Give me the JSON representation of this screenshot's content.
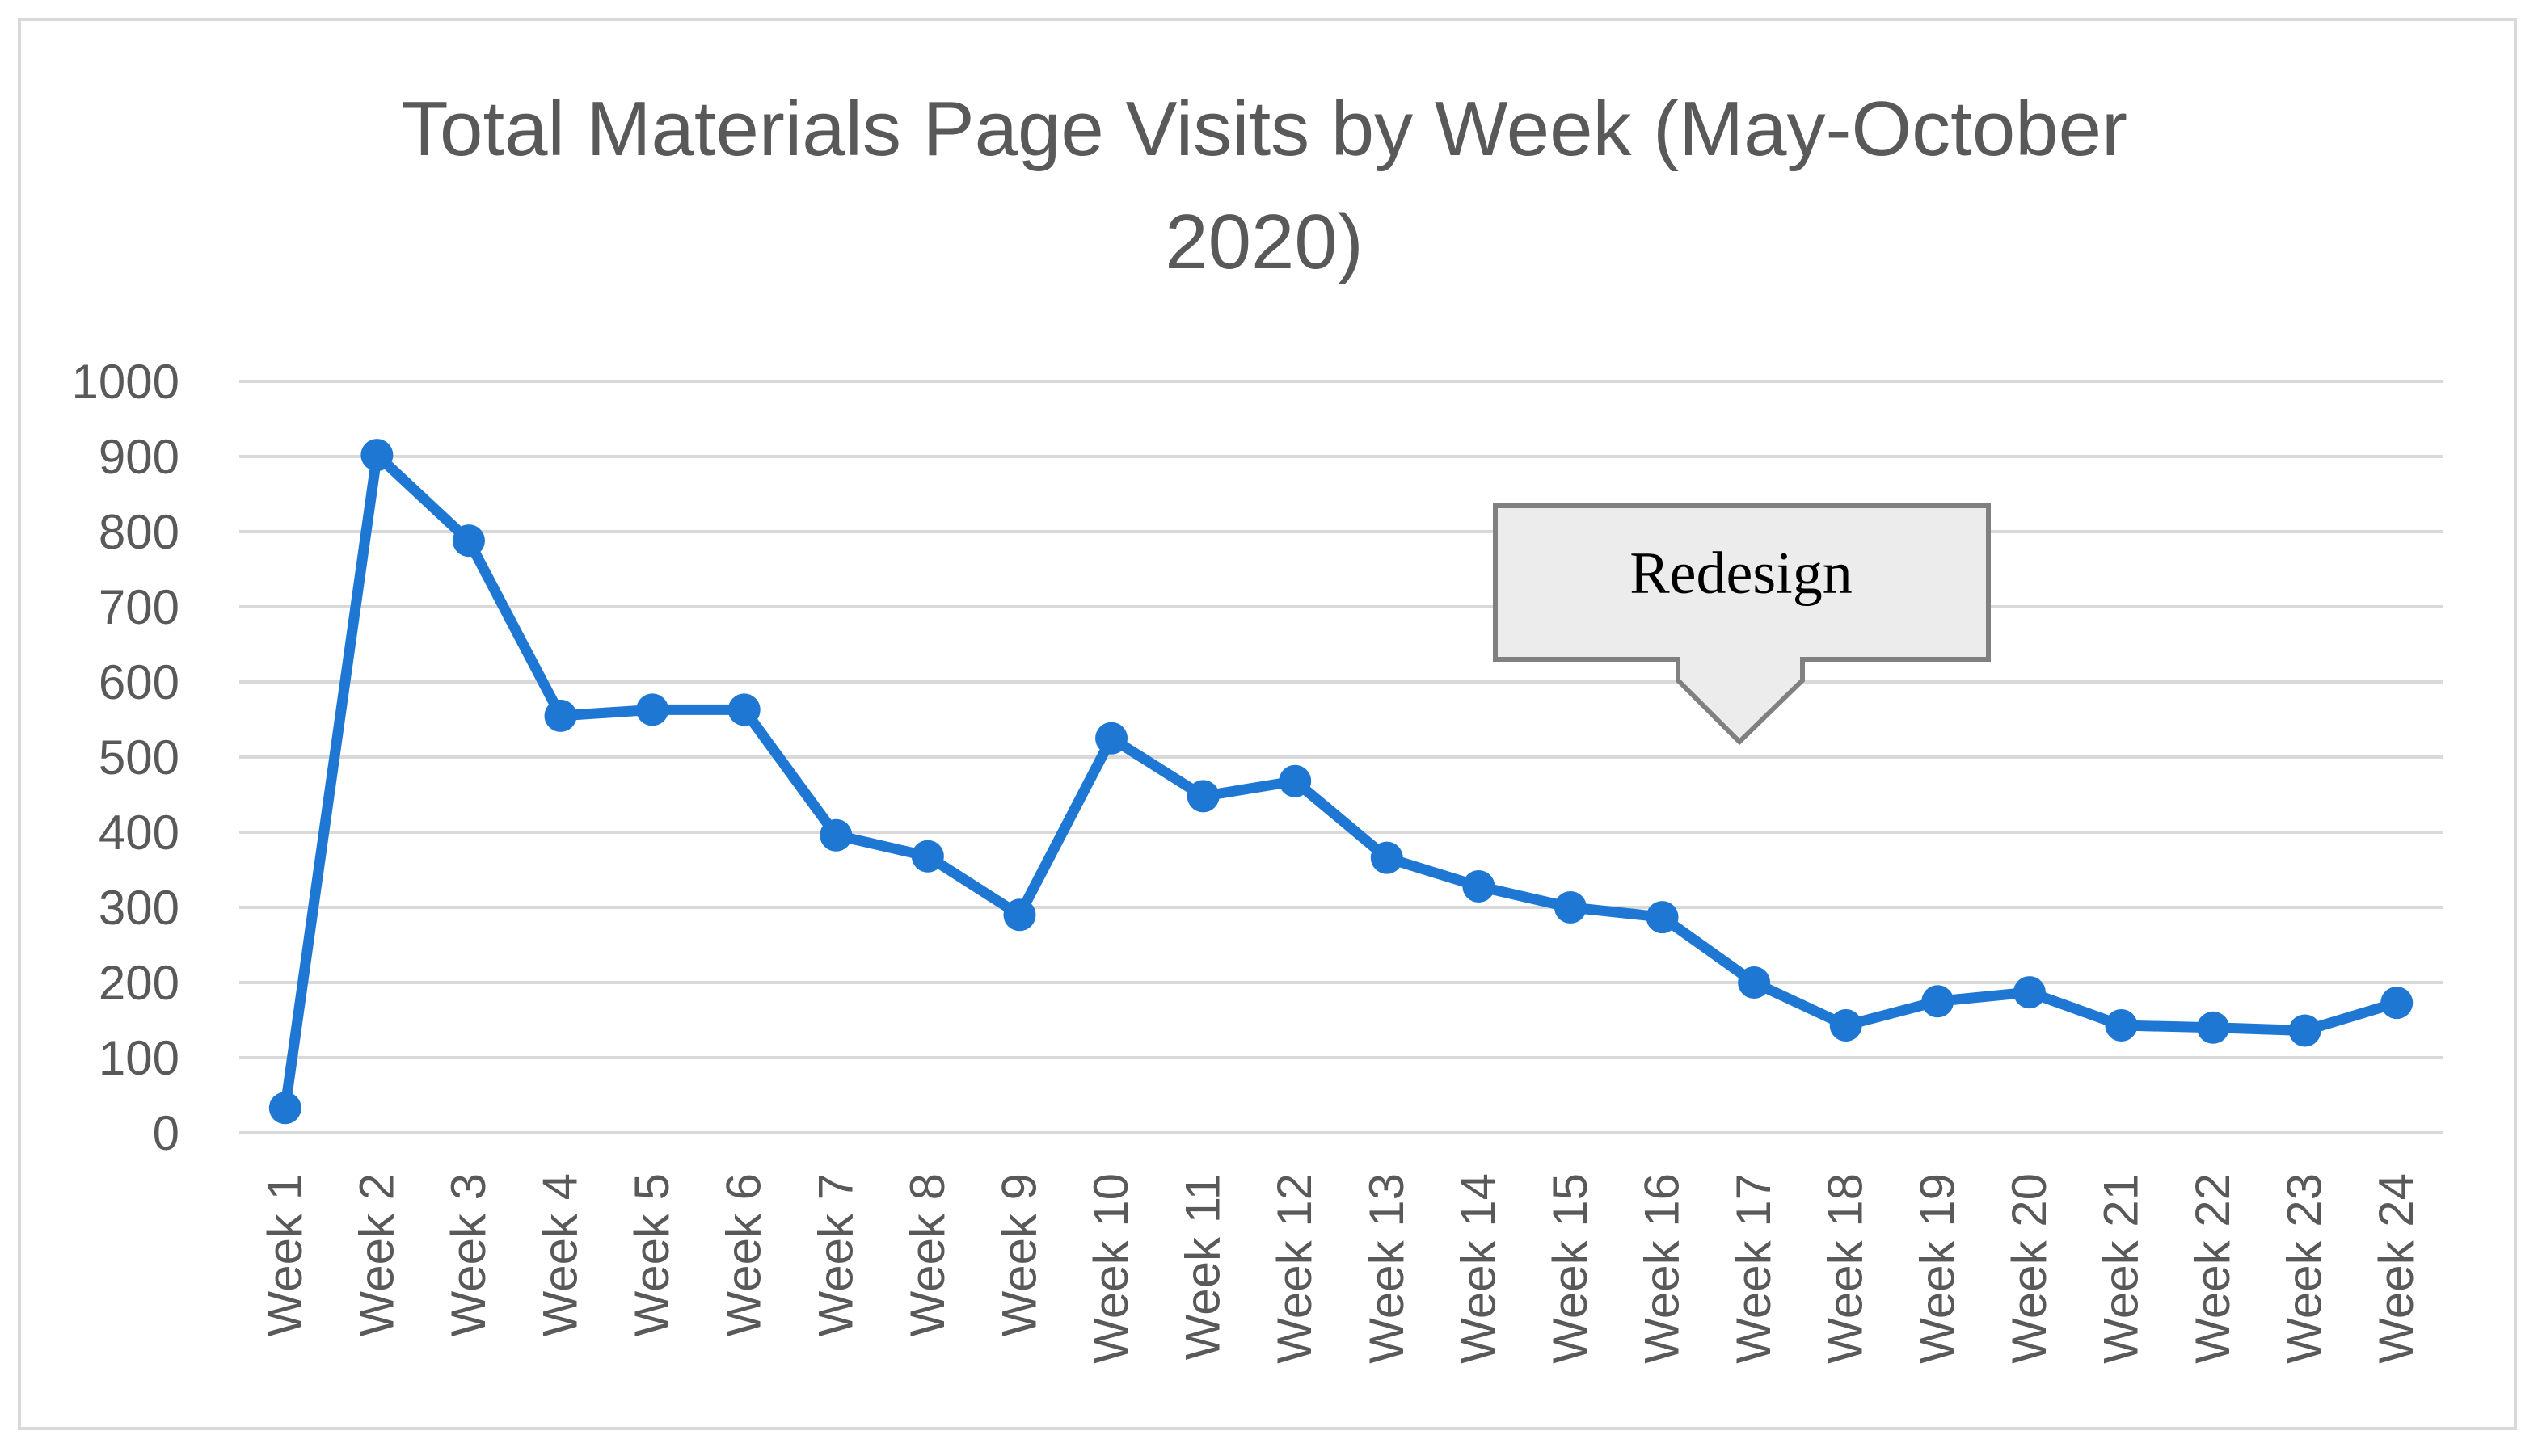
{
  "chart_data": {
    "type": "line",
    "title_line1": "Total Materials Page Visits by Week (May-October",
    "title_line2": "2020)",
    "xlabel": "",
    "ylabel": "",
    "ylim": [
      0,
      1000
    ],
    "yticks": [
      0,
      100,
      200,
      300,
      400,
      500,
      600,
      700,
      800,
      900,
      1000
    ],
    "grid": true,
    "legend": "none",
    "categories": [
      "Week 1",
      "Week 2",
      "Week 3",
      "Week 4",
      "Week 5",
      "Week 6",
      "Week 7",
      "Week 8",
      "Week 9",
      "Week 10",
      "Week 11",
      "Week 12",
      "Week 13",
      "Week 14",
      "Week 15",
      "Week 16",
      "Week 17",
      "Week 18",
      "Week 19",
      "Week 20",
      "Week 21",
      "Week 22",
      "Week 23",
      "Week 24"
    ],
    "series": [
      {
        "color": "#1f77d4",
        "values": [
          33,
          902,
          788,
          555,
          563,
          563,
          396,
          368,
          290,
          525,
          448,
          468,
          366,
          328,
          300,
          287,
          200,
          143,
          175,
          187,
          143,
          140,
          136,
          173
        ]
      }
    ],
    "annotation": {
      "text": "Redesign",
      "points_to": "Week 17"
    },
    "colors": {
      "line": "#1f77d4",
      "grid": "#d9d9d9",
      "axis_text": "#595959",
      "callout_fill": "#ececec",
      "callout_border": "#808080"
    }
  }
}
